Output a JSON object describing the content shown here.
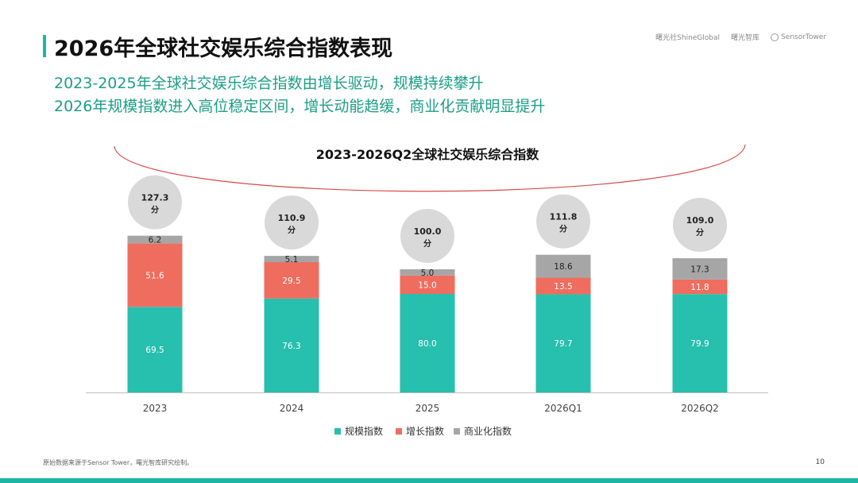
{
  "header": {
    "title": "2026年全球社交娱乐综合指数表现",
    "subtitle_line1": "2023-2025年全球社交娱乐综合指数由增长驱动，规模持续攀升",
    "subtitle_line2": "2026年规模指数进入高位稳定区间，增长动能趋缓，商业化贡献明显提升"
  },
  "logos": {
    "logo1": "曙光社ShineGlobal",
    "logo2": "曙光智库",
    "logo3": "SensorTower"
  },
  "footer": {
    "note": "原始数据来源于Sensor Tower，曙光智库研究绘制。",
    "page_number": "10"
  },
  "colors": {
    "accent": "#19b8a7",
    "scale": "#27bfae",
    "growth": "#ef6d5e",
    "commercial": "#a6a6a6",
    "bubble": "#d9d9d9",
    "arc": "#d94a4a"
  },
  "chart_data": {
    "type": "bar",
    "stacked": true,
    "title": "2023-2026Q2全球社交娱乐综合指数",
    "categories": [
      "2023",
      "2024",
      "2025",
      "2026Q1",
      "2026Q2"
    ],
    "series": [
      {
        "name": "规模指数",
        "values": [
          69.5,
          76.3,
          80.0,
          79.7,
          79.9
        ]
      },
      {
        "name": "增长指数",
        "values": [
          51.6,
          29.5,
          15.0,
          13.5,
          11.8
        ]
      },
      {
        "name": "商业化指数",
        "values": [
          6.2,
          5.1,
          5.0,
          18.6,
          17.3
        ]
      }
    ],
    "totals": [
      127.3,
      110.9,
      100.0,
      111.8,
      109.0
    ],
    "total_labels": [
      "127.3",
      "110.9",
      "100.0",
      "111.8",
      "109.0"
    ],
    "total_unit": "分",
    "value_labels": [
      [
        "69.5",
        "76.3",
        "80.0",
        "79.7",
        "79.9"
      ],
      [
        "51.6",
        "29.5",
        "15.0",
        "13.5",
        "11.8"
      ],
      [
        "6.2",
        "5.1",
        "5.0",
        "18.6",
        "17.3"
      ]
    ],
    "legend_position": "bottom-center",
    "grid": false
  }
}
